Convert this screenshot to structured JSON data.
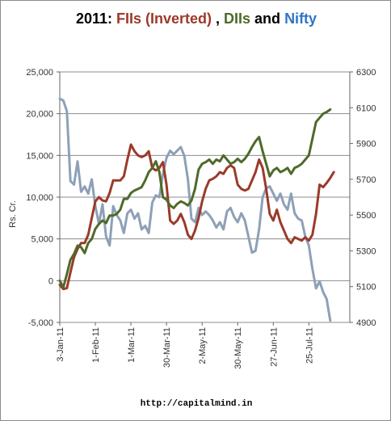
{
  "title": {
    "year": "2011: ",
    "fiis": "FIIs (Inverted)",
    "sep": " , ",
    "diis": "DIIs",
    "and": " and ",
    "nifty": "Nifty"
  },
  "footer": "http://capitalmind.in",
  "colors": {
    "fiis": "#9b3a2a",
    "diis": "#4e6a2a",
    "nifty": "#8ea0b7",
    "nifty_title": "#2e75c7",
    "left_axis": "#333333",
    "right_axis": "#8b1a4a",
    "grid": "#8c8c8c"
  },
  "chart_data": {
    "type": "line",
    "ylabel": "Rs. Cr.",
    "x_ticks": [
      "3-Jan-11",
      "1-Feb-11",
      "1-Mar-11",
      "30-Mar-11",
      "2-May-11",
      "30-May-11",
      "27-Jun-11",
      "25-Jul-11"
    ],
    "x_range": [
      0,
      163
    ],
    "x_tick_positions": [
      0,
      20,
      40,
      60,
      80,
      100,
      120,
      140
    ],
    "ylim_left": [
      -5000,
      25000
    ],
    "yticks_left": [
      "-5,000",
      "0",
      "5,000",
      "10,000",
      "15,000",
      "20,000",
      "25,000"
    ],
    "ylim_right": [
      4900,
      6300
    ],
    "yticks_right": [
      "4900",
      "5100",
      "5300",
      "5500",
      "5700",
      "5900",
      "6100",
      "6300"
    ],
    "grid": "horizontal",
    "series": [
      {
        "name": "FIIs (Inverted)",
        "axis": "left",
        "points": [
          [
            0,
            -500
          ],
          [
            2,
            -1000
          ],
          [
            4,
            -900
          ],
          [
            6,
            1000
          ],
          [
            8,
            2800
          ],
          [
            10,
            3800
          ],
          [
            12,
            4500
          ],
          [
            14,
            4500
          ],
          [
            16,
            5500
          ],
          [
            18,
            7500
          ],
          [
            20,
            9500
          ],
          [
            22,
            10000
          ],
          [
            24,
            9600
          ],
          [
            26,
            9500
          ],
          [
            28,
            10500
          ],
          [
            30,
            12000
          ],
          [
            32,
            12000
          ],
          [
            34,
            12000
          ],
          [
            36,
            12500
          ],
          [
            38,
            14500
          ],
          [
            40,
            16300
          ],
          [
            42,
            15500
          ],
          [
            44,
            15000
          ],
          [
            46,
            14800
          ],
          [
            48,
            15000
          ],
          [
            50,
            15500
          ],
          [
            52,
            13500
          ],
          [
            54,
            13200
          ],
          [
            56,
            13500
          ],
          [
            58,
            14200
          ],
          [
            60,
            11500
          ],
          [
            62,
            7200
          ],
          [
            64,
            6800
          ],
          [
            66,
            7200
          ],
          [
            68,
            8000
          ],
          [
            70,
            7000
          ],
          [
            72,
            5500
          ],
          [
            74,
            5000
          ],
          [
            76,
            6000
          ],
          [
            78,
            7500
          ],
          [
            80,
            9500
          ],
          [
            82,
            11000
          ],
          [
            84,
            12000
          ],
          [
            86,
            12200
          ],
          [
            88,
            12500
          ],
          [
            90,
            13000
          ],
          [
            92,
            12800
          ],
          [
            94,
            13500
          ],
          [
            96,
            13800
          ],
          [
            98,
            13500
          ],
          [
            100,
            11500
          ],
          [
            102,
            11000
          ],
          [
            104,
            10800
          ],
          [
            106,
            11000
          ],
          [
            108,
            12000
          ],
          [
            110,
            13000
          ],
          [
            112,
            14500
          ],
          [
            114,
            13500
          ],
          [
            116,
            11000
          ],
          [
            118,
            8000
          ],
          [
            120,
            7200
          ],
          [
            122,
            8500
          ],
          [
            124,
            7000
          ],
          [
            126,
            6000
          ],
          [
            128,
            5000
          ],
          [
            130,
            4500
          ],
          [
            132,
            5200
          ],
          [
            134,
            5000
          ],
          [
            136,
            4800
          ],
          [
            138,
            5200
          ],
          [
            140,
            4800
          ],
          [
            142,
            5500
          ],
          [
            144,
            8000
          ],
          [
            146,
            11500
          ],
          [
            148,
            11200
          ],
          [
            150,
            11700
          ],
          [
            152,
            12300
          ],
          [
            154,
            13000
          ]
        ]
      },
      {
        "name": "DIIs",
        "axis": "left",
        "points": [
          [
            0,
            0
          ],
          [
            2,
            -800
          ],
          [
            4,
            800
          ],
          [
            6,
            2500
          ],
          [
            8,
            3200
          ],
          [
            10,
            4200
          ],
          [
            12,
            4000
          ],
          [
            14,
            3300
          ],
          [
            16,
            4500
          ],
          [
            18,
            5000
          ],
          [
            20,
            6200
          ],
          [
            22,
            6800
          ],
          [
            24,
            7200
          ],
          [
            26,
            6900
          ],
          [
            28,
            7800
          ],
          [
            30,
            7800
          ],
          [
            32,
            8000
          ],
          [
            34,
            8500
          ],
          [
            36,
            9800
          ],
          [
            38,
            9800
          ],
          [
            40,
            10500
          ],
          [
            42,
            10800
          ],
          [
            44,
            11000
          ],
          [
            46,
            11200
          ],
          [
            48,
            12000
          ],
          [
            50,
            13000
          ],
          [
            52,
            13500
          ],
          [
            54,
            14300
          ],
          [
            56,
            13000
          ],
          [
            58,
            10000
          ],
          [
            60,
            9700
          ],
          [
            62,
            9000
          ],
          [
            64,
            8700
          ],
          [
            66,
            9200
          ],
          [
            68,
            9500
          ],
          [
            70,
            9300
          ],
          [
            72,
            9000
          ],
          [
            74,
            9600
          ],
          [
            76,
            11000
          ],
          [
            78,
            13300
          ],
          [
            80,
            14000
          ],
          [
            82,
            14200
          ],
          [
            84,
            14500
          ],
          [
            86,
            14000
          ],
          [
            88,
            14500
          ],
          [
            90,
            14300
          ],
          [
            92,
            15000
          ],
          [
            94,
            14500
          ],
          [
            96,
            14000
          ],
          [
            98,
            14200
          ],
          [
            100,
            14600
          ],
          [
            102,
            14200
          ],
          [
            104,
            14600
          ],
          [
            106,
            15200
          ],
          [
            108,
            16000
          ],
          [
            110,
            16700
          ],
          [
            112,
            17200
          ],
          [
            114,
            15500
          ],
          [
            116,
            14000
          ],
          [
            118,
            12500
          ],
          [
            120,
            13200
          ],
          [
            122,
            13500
          ],
          [
            124,
            13000
          ],
          [
            126,
            13200
          ],
          [
            128,
            13500
          ],
          [
            130,
            12800
          ],
          [
            132,
            13500
          ],
          [
            134,
            13700
          ],
          [
            136,
            14000
          ],
          [
            138,
            14500
          ],
          [
            140,
            15000
          ],
          [
            142,
            17000
          ],
          [
            144,
            19000
          ],
          [
            146,
            19500
          ],
          [
            148,
            20000
          ],
          [
            150,
            20200
          ],
          [
            152,
            20500
          ]
        ]
      },
      {
        "name": "Nifty",
        "axis": "right",
        "points": [
          [
            0,
            6150
          ],
          [
            2,
            6140
          ],
          [
            4,
            6080
          ],
          [
            6,
            5690
          ],
          [
            8,
            5670
          ],
          [
            10,
            5800
          ],
          [
            12,
            5630
          ],
          [
            14,
            5660
          ],
          [
            16,
            5620
          ],
          [
            18,
            5700
          ],
          [
            20,
            5550
          ],
          [
            22,
            5450
          ],
          [
            24,
            5560
          ],
          [
            26,
            5380
          ],
          [
            28,
            5330
          ],
          [
            30,
            5550
          ],
          [
            32,
            5500
          ],
          [
            34,
            5470
          ],
          [
            36,
            5400
          ],
          [
            38,
            5510
          ],
          [
            40,
            5530
          ],
          [
            42,
            5480
          ],
          [
            44,
            5510
          ],
          [
            46,
            5420
          ],
          [
            48,
            5440
          ],
          [
            50,
            5400
          ],
          [
            52,
            5570
          ],
          [
            54,
            5610
          ],
          [
            56,
            5600
          ],
          [
            58,
            5730
          ],
          [
            60,
            5820
          ],
          [
            62,
            5860
          ],
          [
            64,
            5840
          ],
          [
            66,
            5860
          ],
          [
            68,
            5880
          ],
          [
            70,
            5830
          ],
          [
            72,
            5700
          ],
          [
            74,
            5480
          ],
          [
            76,
            5460
          ],
          [
            78,
            5540
          ],
          [
            80,
            5500
          ],
          [
            82,
            5520
          ],
          [
            84,
            5500
          ],
          [
            86,
            5470
          ],
          [
            88,
            5430
          ],
          [
            90,
            5460
          ],
          [
            92,
            5420
          ],
          [
            94,
            5520
          ],
          [
            96,
            5540
          ],
          [
            98,
            5490
          ],
          [
            100,
            5460
          ],
          [
            102,
            5510
          ],
          [
            104,
            5470
          ],
          [
            106,
            5380
          ],
          [
            108,
            5290
          ],
          [
            110,
            5300
          ],
          [
            112,
            5420
          ],
          [
            114,
            5600
          ],
          [
            116,
            5650
          ],
          [
            118,
            5660
          ],
          [
            120,
            5620
          ],
          [
            122,
            5580
          ],
          [
            124,
            5620
          ],
          [
            126,
            5560
          ],
          [
            128,
            5530
          ],
          [
            130,
            5620
          ],
          [
            132,
            5510
          ],
          [
            134,
            5480
          ],
          [
            136,
            5470
          ],
          [
            138,
            5380
          ],
          [
            140,
            5330
          ],
          [
            142,
            5200
          ],
          [
            144,
            5090
          ],
          [
            146,
            5130
          ],
          [
            148,
            5070
          ],
          [
            150,
            5030
          ],
          [
            152,
            4910
          ]
        ]
      }
    ]
  }
}
